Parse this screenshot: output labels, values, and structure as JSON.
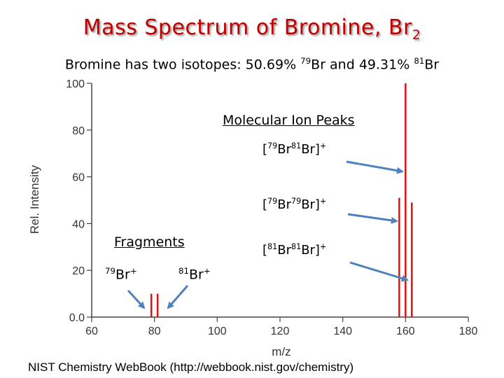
{
  "slide": {
    "title_main": "Mass Spectrum of Bromine, Br",
    "title_sub": "2",
    "subtitle": {
      "p1": "Bromine has two isotopes: 50.69% ",
      "s1": "79",
      "p2": "Br and 49.31% ",
      "s2": "81",
      "p3": "Br"
    },
    "credit": "NIST Chemistry WebBook (http://webbook.nist.gov/chemistry)"
  },
  "annotations": {
    "molecular_header": "Molecular Ion Peaks",
    "ion_81_81_top": {
      "a": "[",
      "s1": "79",
      "b": "Br",
      "s2": "81",
      "c": "Br]",
      "sp": "+"
    },
    "ion_79_79": {
      "a": "[",
      "s1": "79",
      "b": "Br",
      "s2": "79",
      "c": "Br]",
      "sp": "+"
    },
    "ion_81_81": {
      "a": "[",
      "s1": "81",
      "b": "Br",
      "s2": "81",
      "c": "Br]",
      "sp": "+"
    },
    "fragments_header": "Fragments",
    "frag_79": {
      "s": "79",
      "b": "Br",
      "sp": "+"
    },
    "frag_81": {
      "s": "81",
      "b": "Br",
      "sp": "+"
    }
  },
  "colors": {
    "peak": "#dd1111",
    "arrow": "#4f81bd",
    "title": "#c00000"
  },
  "chart_data": {
    "type": "bar",
    "xlabel": "m/z",
    "ylabel": "Rel. Intensity",
    "xlim": [
      60,
      180
    ],
    "ylim": [
      0,
      100
    ],
    "xticks": [
      60,
      80,
      100,
      120,
      140,
      160,
      180
    ],
    "yticks": [
      0,
      20,
      40,
      60,
      80,
      100
    ],
    "ytick_labels": [
      "0.0",
      "20",
      "40",
      "60",
      "80",
      "100"
    ],
    "grid": false,
    "peaks": [
      {
        "mz": 79,
        "intensity": 10
      },
      {
        "mz": 81,
        "intensity": 10
      },
      {
        "mz": 158,
        "intensity": 51
      },
      {
        "mz": 160,
        "intensity": 100
      },
      {
        "mz": 162,
        "intensity": 49
      }
    ]
  }
}
